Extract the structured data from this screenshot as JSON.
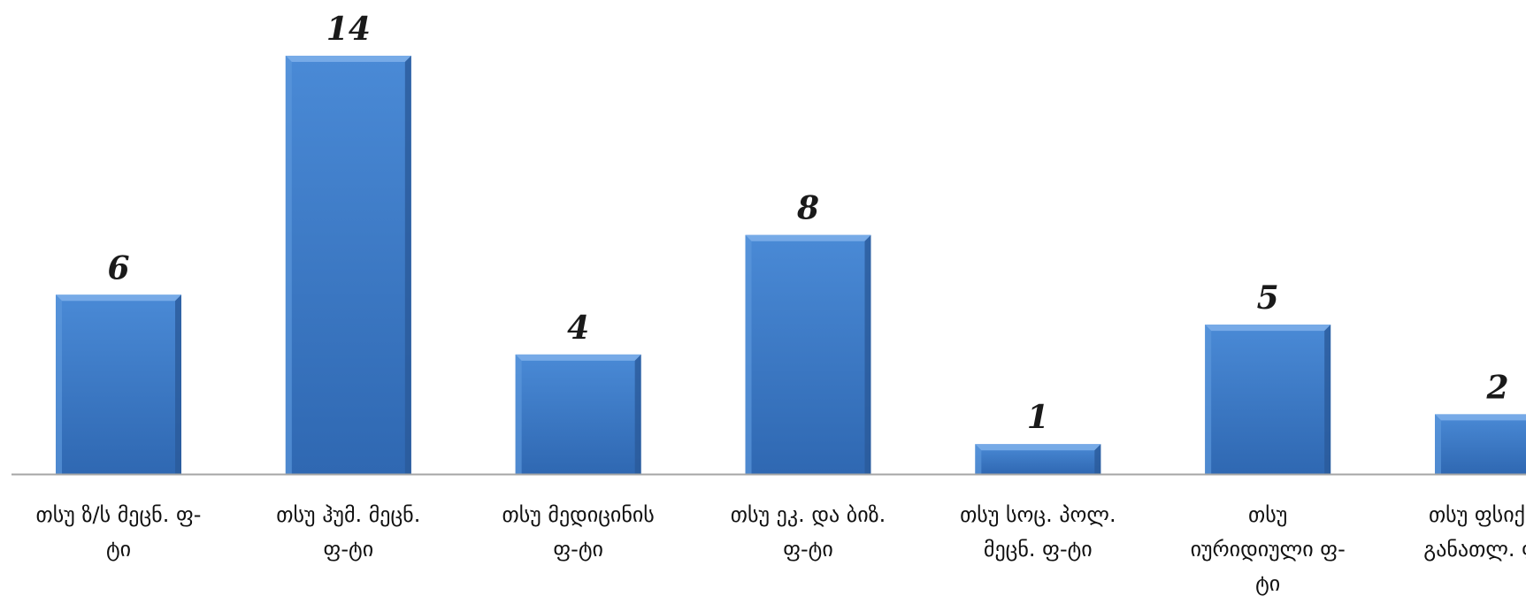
{
  "chart_data": {
    "type": "bar",
    "categories": [
      [
        "თსუ ზ/ს მეცნ. ფ-",
        "ტი"
      ],
      [
        "თსუ ჰუმ. მეცნ.",
        "ფ-ტი"
      ],
      [
        "თსუ მედიცინის",
        "ფ-ტი"
      ],
      [
        "თსუ ეკ. და ბიზ.",
        "ფ-ტი"
      ],
      [
        "თსუ სოც. პოლ.",
        "მეცნ. ფ-ტი"
      ],
      [
        "თსუ",
        "იურიდიული ფ-",
        "ტი"
      ],
      [
        "თსუ ფსიქ. და",
        "განათლ. ფ-ტი"
      ]
    ],
    "values": [
      6,
      14,
      4,
      8,
      1,
      5,
      2
    ],
    "title": "",
    "xlabel": "",
    "ylabel": "",
    "ylim": [
      0,
      14
    ],
    "grid": false,
    "legend": "none",
    "bar_color": "#3f7fcc",
    "bar_color_dark": "#2a5a9a",
    "axis_color": "#a6a6a6"
  }
}
